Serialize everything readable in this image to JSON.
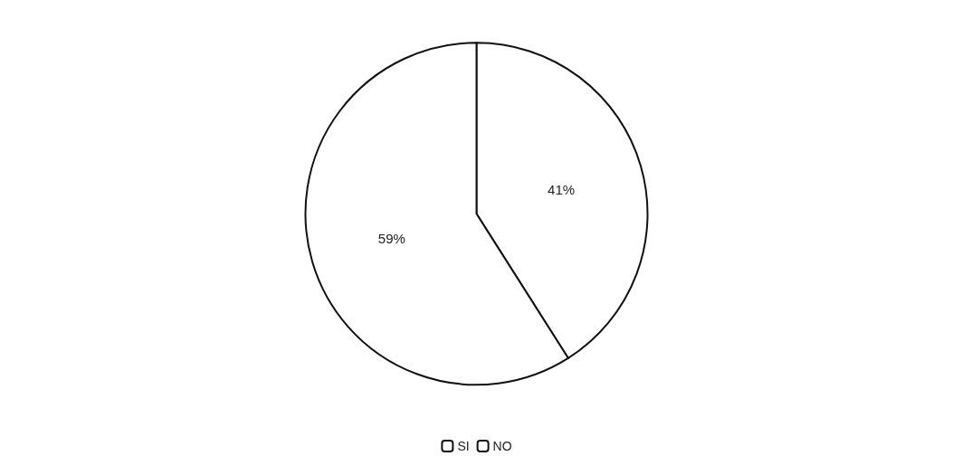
{
  "chart_data": {
    "type": "pie",
    "categories": [
      "SI",
      "NO"
    ],
    "values": [
      41,
      59
    ],
    "value_labels": [
      "41%",
      "59%"
    ],
    "colors": [
      "#ffffff",
      "#ffffff"
    ],
    "legend": "bottom"
  }
}
